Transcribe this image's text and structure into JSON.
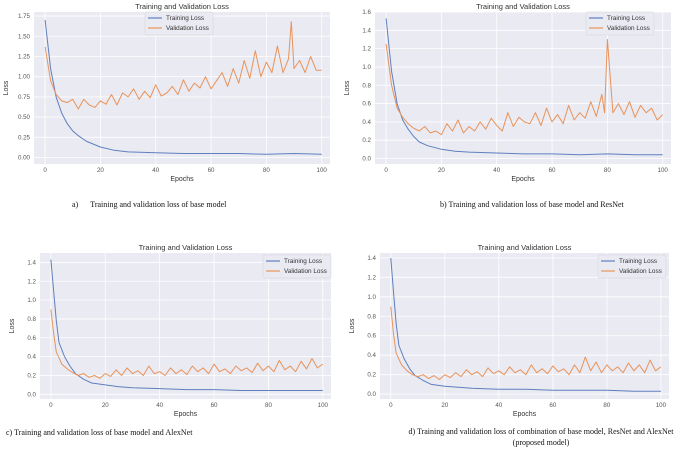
{
  "colors": {
    "train": "#5f7fbf",
    "val": "#e8935a",
    "plot_bg": "#eaeaf2",
    "grid": "#ffffff"
  },
  "captions": [
    "a)      Training and validation loss of base model",
    "b) Training and validation loss of base model and ResNet",
    "c) Training and validation loss of base model and AlexNet",
    "d) Training and validation loss of combination of base model, ResNet and AlexNet (proposed model)"
  ],
  "chart_data": [
    {
      "type": "line",
      "title": "Training and Validation Loss",
      "xlabel": "Epochs",
      "ylabel": "Loss",
      "xlim": [
        -4,
        103
      ],
      "ylim": [
        -0.08,
        1.8
      ],
      "xticks": [
        0,
        20,
        40,
        60,
        80,
        100
      ],
      "yticks": [
        0.0,
        0.25,
        0.5,
        0.75,
        1.0,
        1.25,
        1.5,
        1.75
      ],
      "ytick_labels": [
        "0.00",
        "0.25",
        "0.50",
        "0.75",
        "1.00",
        "1.25",
        "1.50",
        "1.75"
      ],
      "grid": true,
      "legend": "top-center",
      "series": [
        {
          "name": "Training Loss",
          "color_key": "train",
          "x": [
            0,
            2,
            4,
            6,
            8,
            10,
            12,
            15,
            20,
            25,
            30,
            40,
            50,
            60,
            70,
            80,
            90,
            100
          ],
          "y": [
            1.7,
            1.1,
            0.75,
            0.55,
            0.42,
            0.33,
            0.27,
            0.2,
            0.13,
            0.09,
            0.07,
            0.06,
            0.05,
            0.05,
            0.05,
            0.04,
            0.05,
            0.04
          ]
        },
        {
          "name": "Validation Loss",
          "color_key": "val",
          "x": [
            0,
            2,
            4,
            6,
            8,
            10,
            12,
            14,
            16,
            18,
            20,
            22,
            24,
            26,
            28,
            30,
            32,
            34,
            36,
            38,
            40,
            42,
            44,
            46,
            48,
            50,
            52,
            54,
            56,
            58,
            60,
            62,
            64,
            66,
            68,
            70,
            72,
            74,
            76,
            78,
            80,
            82,
            84,
            86,
            88,
            89,
            90,
            92,
            94,
            96,
            98,
            100
          ],
          "y": [
            1.37,
            0.95,
            0.78,
            0.7,
            0.68,
            0.72,
            0.6,
            0.72,
            0.65,
            0.62,
            0.7,
            0.66,
            0.78,
            0.65,
            0.8,
            0.75,
            0.85,
            0.72,
            0.82,
            0.74,
            0.9,
            0.76,
            0.8,
            0.88,
            0.78,
            0.96,
            0.82,
            0.92,
            0.86,
            1.0,
            0.85,
            0.95,
            1.05,
            0.88,
            1.1,
            0.92,
            1.2,
            0.98,
            1.32,
            1.0,
            1.18,
            1.05,
            1.38,
            1.05,
            1.22,
            1.68,
            1.1,
            1.2,
            1.05,
            1.25,
            1.08,
            1.08
          ]
        }
      ]
    },
    {
      "type": "line",
      "title": "Training and Validation Loss",
      "xlabel": "Epochs",
      "ylabel": "Loss",
      "xlim": [
        -4,
        103
      ],
      "ylim": [
        -0.06,
        1.6
      ],
      "xticks": [
        0,
        20,
        40,
        60,
        80,
        100
      ],
      "yticks": [
        0.0,
        0.2,
        0.4,
        0.6,
        0.8,
        1.0,
        1.2,
        1.4,
        1.6
      ],
      "ytick_labels": [
        "0.0",
        "0.2",
        "0.4",
        "0.6",
        "0.8",
        "1.0",
        "1.2",
        "1.4",
        "1.6"
      ],
      "grid": true,
      "legend": "top-right",
      "series": [
        {
          "name": "Training Loss",
          "color_key": "train",
          "x": [
            0,
            2,
            4,
            6,
            8,
            10,
            12,
            15,
            20,
            25,
            30,
            40,
            50,
            60,
            70,
            80,
            90,
            100
          ],
          "y": [
            1.53,
            0.95,
            0.6,
            0.42,
            0.32,
            0.24,
            0.18,
            0.14,
            0.1,
            0.08,
            0.07,
            0.06,
            0.05,
            0.05,
            0.04,
            0.05,
            0.04,
            0.04
          ]
        },
        {
          "name": "Validation Loss",
          "color_key": "val",
          "x": [
            0,
            2,
            4,
            6,
            8,
            10,
            12,
            14,
            16,
            18,
            20,
            22,
            24,
            26,
            28,
            30,
            32,
            34,
            36,
            38,
            40,
            42,
            44,
            46,
            48,
            50,
            52,
            54,
            56,
            58,
            60,
            62,
            64,
            66,
            68,
            70,
            72,
            74,
            76,
            78,
            79,
            80,
            82,
            84,
            86,
            88,
            90,
            92,
            94,
            96,
            98,
            100
          ],
          "y": [
            1.25,
            0.8,
            0.55,
            0.45,
            0.38,
            0.33,
            0.3,
            0.35,
            0.28,
            0.3,
            0.26,
            0.38,
            0.3,
            0.42,
            0.28,
            0.35,
            0.3,
            0.4,
            0.32,
            0.44,
            0.36,
            0.3,
            0.5,
            0.35,
            0.45,
            0.4,
            0.38,
            0.5,
            0.36,
            0.55,
            0.4,
            0.48,
            0.38,
            0.58,
            0.42,
            0.5,
            0.44,
            0.62,
            0.46,
            0.7,
            0.5,
            1.3,
            0.5,
            0.6,
            0.48,
            0.62,
            0.45,
            0.58,
            0.5,
            0.55,
            0.42,
            0.48
          ]
        }
      ]
    },
    {
      "type": "line",
      "title": "Training and Validation Loss",
      "xlabel": "Epochs",
      "ylabel": "Loss",
      "xlim": [
        -4,
        103
      ],
      "ylim": [
        -0.05,
        1.5
      ],
      "xticks": [
        0,
        20,
        40,
        60,
        80,
        100
      ],
      "yticks": [
        0.0,
        0.2,
        0.4,
        0.6,
        0.8,
        1.0,
        1.2,
        1.4
      ],
      "ytick_labels": [
        "0.0",
        "0.2",
        "0.4",
        "0.6",
        "0.8",
        "1.0",
        "1.2",
        "1.4"
      ],
      "grid": true,
      "legend": "top-right",
      "series": [
        {
          "name": "Training Loss",
          "color_key": "train",
          "x": [
            0,
            1,
            2,
            3,
            5,
            7,
            9,
            12,
            15,
            20,
            25,
            30,
            40,
            50,
            60,
            70,
            80,
            90,
            100
          ],
          "y": [
            1.43,
            1.1,
            0.78,
            0.55,
            0.4,
            0.3,
            0.22,
            0.16,
            0.12,
            0.1,
            0.08,
            0.07,
            0.06,
            0.05,
            0.05,
            0.04,
            0.04,
            0.04,
            0.04
          ]
        },
        {
          "name": "Validation Loss",
          "color_key": "val",
          "x": [
            0,
            1,
            2,
            4,
            6,
            8,
            10,
            12,
            14,
            16,
            18,
            20,
            22,
            24,
            26,
            28,
            30,
            32,
            34,
            36,
            38,
            40,
            42,
            44,
            46,
            48,
            50,
            52,
            54,
            56,
            58,
            60,
            62,
            64,
            66,
            68,
            70,
            72,
            74,
            76,
            78,
            80,
            82,
            84,
            86,
            88,
            90,
            92,
            94,
            96,
            98,
            100
          ],
          "y": [
            0.9,
            0.65,
            0.45,
            0.32,
            0.27,
            0.23,
            0.2,
            0.22,
            0.18,
            0.2,
            0.17,
            0.22,
            0.19,
            0.26,
            0.2,
            0.28,
            0.22,
            0.25,
            0.2,
            0.3,
            0.22,
            0.24,
            0.2,
            0.28,
            0.22,
            0.26,
            0.21,
            0.3,
            0.24,
            0.28,
            0.22,
            0.32,
            0.24,
            0.27,
            0.22,
            0.3,
            0.25,
            0.28,
            0.23,
            0.33,
            0.25,
            0.3,
            0.24,
            0.36,
            0.26,
            0.3,
            0.24,
            0.35,
            0.27,
            0.38,
            0.28,
            0.32
          ]
        }
      ]
    },
    {
      "type": "line",
      "title": "Training and Validation Loss",
      "xlabel": "Epochs",
      "ylabel": "Loss",
      "xlim": [
        -4,
        103
      ],
      "ylim": [
        -0.05,
        1.45
      ],
      "xticks": [
        0,
        20,
        40,
        60,
        80,
        100
      ],
      "yticks": [
        0.0,
        0.2,
        0.4,
        0.6,
        0.8,
        1.0,
        1.2,
        1.4
      ],
      "ytick_labels": [
        "0.0",
        "0.2",
        "0.4",
        "0.6",
        "0.8",
        "1.0",
        "1.2",
        "1.4"
      ],
      "grid": true,
      "legend": "top-right",
      "series": [
        {
          "name": "Training Loss",
          "color_key": "train",
          "x": [
            0,
            1,
            2,
            3,
            5,
            7,
            9,
            12,
            15,
            20,
            25,
            30,
            40,
            50,
            60,
            70,
            80,
            90,
            100
          ],
          "y": [
            1.4,
            1.05,
            0.72,
            0.5,
            0.36,
            0.26,
            0.19,
            0.14,
            0.1,
            0.08,
            0.07,
            0.06,
            0.05,
            0.05,
            0.04,
            0.04,
            0.04,
            0.03,
            0.03
          ]
        },
        {
          "name": "Validation Loss",
          "color_key": "val",
          "x": [
            0,
            1,
            2,
            4,
            6,
            8,
            10,
            12,
            14,
            16,
            18,
            20,
            22,
            24,
            26,
            28,
            30,
            32,
            34,
            36,
            38,
            40,
            42,
            44,
            46,
            48,
            50,
            52,
            54,
            56,
            58,
            60,
            62,
            64,
            66,
            68,
            70,
            72,
            74,
            76,
            78,
            80,
            82,
            84,
            86,
            88,
            90,
            92,
            94,
            96,
            98,
            100
          ],
          "y": [
            0.9,
            0.62,
            0.42,
            0.3,
            0.24,
            0.2,
            0.18,
            0.2,
            0.16,
            0.19,
            0.15,
            0.2,
            0.17,
            0.22,
            0.18,
            0.25,
            0.2,
            0.23,
            0.18,
            0.27,
            0.21,
            0.24,
            0.2,
            0.28,
            0.22,
            0.25,
            0.2,
            0.3,
            0.22,
            0.26,
            0.21,
            0.29,
            0.23,
            0.26,
            0.2,
            0.3,
            0.22,
            0.38,
            0.24,
            0.33,
            0.22,
            0.3,
            0.24,
            0.28,
            0.22,
            0.32,
            0.24,
            0.3,
            0.22,
            0.35,
            0.24,
            0.28
          ]
        }
      ]
    }
  ]
}
